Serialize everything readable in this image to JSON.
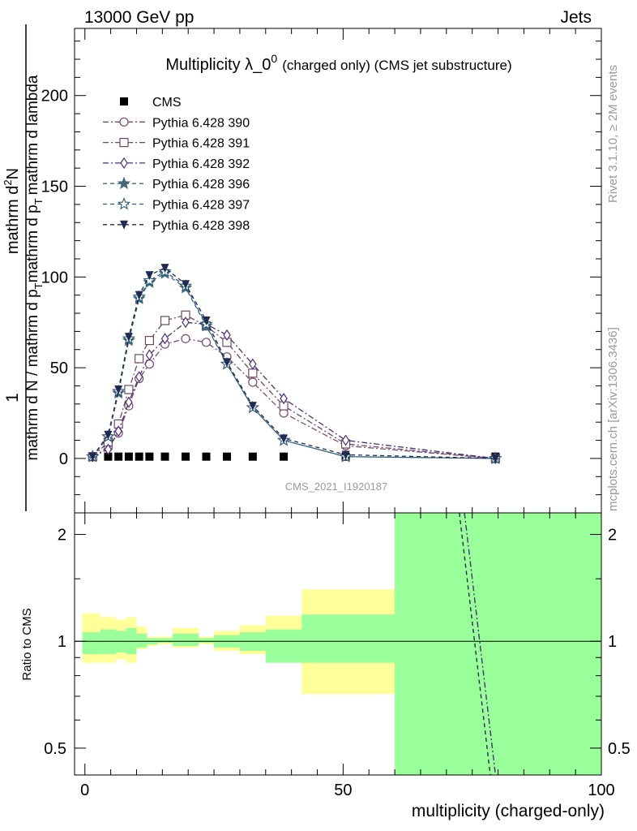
{
  "header": {
    "left": "13000 GeV pp",
    "right": "Jets"
  },
  "side_labels": {
    "rivet": "Rivet 3.1.10, ≥ 2M events",
    "mcplots": "mcplots.cern.ch [arXiv:1306.3436]"
  },
  "watermark": "CMS_2021_I1920187",
  "chart_data": [
    {
      "type": "line",
      "panel": "main",
      "title": "Multiplicity λ_0",
      "title_sup": "0",
      "title_suffix": "(charged only) (CMS jet substructure)",
      "ylabel_top": "1",
      "ylabel_num": "mathrm d",
      "ylabel_num_sup": "2",
      "ylabel_num_rest": "N",
      "ylabel_den_a": "mathrm d N / mathrm d p",
      "ylabel_den_b": "T",
      "ylabel_den_c": "mathrm d p",
      "ylabel_den_d": "T",
      "ylabel_den_e": "mathrm d lambda",
      "xlim": [
        -2,
        100
      ],
      "ylim": [
        -30,
        237
      ],
      "yticks": [
        0,
        50,
        100,
        150,
        200
      ],
      "legend_position": "top-left",
      "series": [
        {
          "name": "CMS",
          "marker": "filled-square",
          "color": "#000000",
          "x": [
            1.5,
            4.5,
            6.5,
            8.5,
            10.5,
            12.5,
            15.5,
            19.5,
            23.5,
            27.5,
            32.5,
            38.5,
            50.5,
            79.5
          ],
          "y": [
            1,
            1,
            1,
            1,
            1,
            1,
            1,
            1,
            1,
            1,
            1,
            1,
            1,
            1
          ]
        },
        {
          "name": "Pythia 6.428 390",
          "marker": "open-circle",
          "color": "#7a4a73",
          "dash": "7,3,2,3",
          "x": [
            1.5,
            4.5,
            6.5,
            8.5,
            10.5,
            12.5,
            15.5,
            19.5,
            23.5,
            27.5,
            32.5,
            38.5,
            50.5,
            79.5
          ],
          "y": [
            1,
            6,
            14,
            29,
            44,
            52,
            63,
            66,
            64,
            56,
            42,
            25,
            7,
            0
          ]
        },
        {
          "name": "Pythia 6.428 391",
          "marker": "open-square",
          "color": "#6e4a62",
          "dash": "7,3,2,3",
          "x": [
            1.5,
            4.5,
            6.5,
            8.5,
            10.5,
            12.5,
            15.5,
            19.5,
            23.5,
            27.5,
            32.5,
            38.5,
            50.5,
            79.5
          ],
          "y": [
            1,
            9,
            19,
            38,
            55,
            65,
            76,
            79,
            73,
            64,
            47,
            29,
            8,
            0
          ]
        },
        {
          "name": "Pythia 6.428 392",
          "marker": "open-diamond",
          "color": "#4a2f7a",
          "dash": "7,3,2,3",
          "x": [
            1.5,
            4.5,
            6.5,
            8.5,
            10.5,
            12.5,
            15.5,
            19.5,
            23.5,
            27.5,
            32.5,
            38.5,
            50.5,
            79.5
          ],
          "y": [
            1,
            5,
            15,
            31,
            45,
            57,
            66,
            75,
            74,
            68,
            52,
            33,
            10,
            0
          ]
        },
        {
          "name": "Pythia 6.428 396",
          "marker": "filled-star",
          "color": "#3e6a7a",
          "dash": "5,4",
          "x": [
            1.5,
            4.5,
            6.5,
            8.5,
            10.5,
            12.5,
            15.5,
            19.5,
            23.5,
            27.5,
            32.5,
            38.5,
            50.5,
            79.5
          ],
          "y": [
            1,
            12,
            36,
            65,
            88,
            97,
            102,
            94,
            73,
            52,
            28,
            10,
            1,
            0
          ]
        },
        {
          "name": "Pythia 6.428 397",
          "marker": "open-star",
          "color": "#2e5a7a",
          "dash": "5,4",
          "x": [
            1.5,
            4.5,
            6.5,
            8.5,
            10.5,
            12.5,
            15.5,
            19.5,
            23.5,
            27.5,
            32.5,
            38.5,
            50.5,
            79.5
          ],
          "y": [
            1,
            12,
            37,
            66,
            89,
            98,
            103,
            95,
            74,
            52,
            28,
            10,
            1,
            0
          ]
        },
        {
          "name": "Pythia 6.428 398",
          "marker": "filled-triangle-down",
          "color": "#1f2a55",
          "dash": "5,4",
          "x": [
            1.5,
            4.5,
            6.5,
            8.5,
            10.5,
            12.5,
            15.5,
            19.5,
            23.5,
            27.5,
            32.5,
            38.5,
            50.5,
            79.5
          ],
          "y": [
            1,
            13,
            38,
            67,
            90,
            101,
            105,
            96,
            76,
            53,
            29,
            11,
            2,
            0
          ]
        }
      ]
    },
    {
      "type": "line",
      "panel": "ratio",
      "ylabel": "Ratio to CMS",
      "xlabel": "multiplicity (charged-only)",
      "xlim": [
        -2,
        100
      ],
      "ylim": [
        0.42,
        2.3
      ],
      "ylog": true,
      "xticks": [
        0,
        50,
        100
      ],
      "yticks": [
        0.5,
        1,
        2
      ],
      "bands": {
        "edges": [
          -0.5,
          3,
          6,
          8,
          10,
          12,
          14,
          17,
          22,
          25,
          30,
          35,
          42,
          60,
          100
        ],
        "yellow_low": [
          0.87,
          0.87,
          0.89,
          0.87,
          0.95,
          0.97,
          0.98,
          0.96,
          0.98,
          0.94,
          0.92,
          0.91,
          0.71,
          0.42
        ],
        "yellow_high": [
          1.2,
          1.17,
          1.15,
          1.17,
          1.1,
          1.03,
          1.03,
          1.09,
          1.03,
          1.07,
          1.11,
          1.18,
          1.4,
          2.3
        ],
        "green_low": [
          0.92,
          0.92,
          0.93,
          0.92,
          0.96,
          0.98,
          0.99,
          0.97,
          0.99,
          0.96,
          0.94,
          0.87,
          0.87,
          0.42
        ],
        "green_high": [
          1.06,
          1.08,
          1.07,
          1.09,
          1.05,
          1.02,
          1.02,
          1.05,
          1.02,
          1.04,
          1.06,
          1.08,
          1.19,
          2.3
        ]
      },
      "series": [
        {
          "name": "Pythia 6.428 390 ratio",
          "color": "#4a2f7a",
          "dash": "7,3,2,3",
          "x": [
            73.5,
            79.5
          ],
          "y": [
            2.3,
            0.42
          ]
        },
        {
          "name": "Pythia 6.428 398 ratio",
          "color": "#1f2a55",
          "dash": "5,4",
          "x": [
            72.5,
            78.5
          ],
          "y": [
            2.3,
            0.42
          ]
        }
      ]
    }
  ]
}
